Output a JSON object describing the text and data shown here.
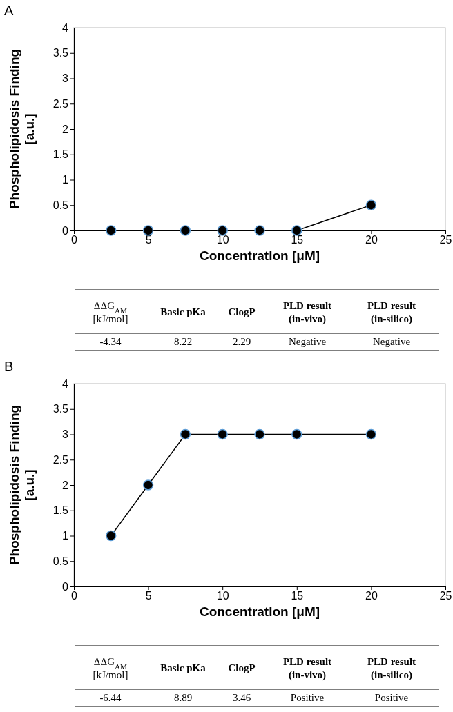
{
  "chart_data": [
    {
      "type": "line",
      "title": "A",
      "xlabel": "Concentration [μM]",
      "ylabel": "Phospholipidosis Finding [a.u.]",
      "x": [
        2.5,
        5,
        7.5,
        10,
        12.5,
        15,
        20
      ],
      "values": [
        0,
        0,
        0,
        0,
        0,
        0,
        0.5
      ],
      "color": "#000000",
      "marker": "circle",
      "xlim": [
        0,
        25
      ],
      "xticks": [
        0,
        5,
        10,
        15,
        20,
        25
      ],
      "ylim": [
        0,
        4
      ],
      "yticks": [
        0,
        0.5,
        1,
        1.5,
        2,
        2.5,
        3,
        3.5,
        4
      ],
      "annotations": [
        "ΔΔG$_{AM}$ [kJ/mol]",
        "Basic pKa",
        "ClogP",
        "PLD result (in-vivo)",
        "PLD result (in-silico)",
        "-4.34",
        "8.22",
        "2.29",
        "Negative",
        "Negative"
      ]
    },
    {
      "type": "line",
      "title": "B",
      "xlabel": "Concentration [μM]",
      "ylabel": "Phospholipidosis Finding [a.u.]",
      "x": [
        2.5,
        5,
        7.5,
        10,
        12.5,
        15,
        20
      ],
      "values": [
        1,
        2,
        3,
        3,
        3,
        3,
        3
      ],
      "color": "#000000",
      "marker": "circle",
      "xlim": [
        0,
        25
      ],
      "xticks": [
        0,
        5,
        10,
        15,
        20,
        25
      ],
      "ylim": [
        0,
        4
      ],
      "yticks": [
        0,
        0.5,
        1,
        1.5,
        2,
        2.5,
        3,
        3.5,
        4
      ],
      "annotations": [
        "ΔΔG$_{AM}$ [kJ/mol]",
        "Basic pKa",
        "ClogP",
        "PLD result (in-vivo)",
        "PLD result (in-silico)",
        "-6.44",
        "8.89",
        "3.46",
        "Positive",
        "Positive"
      ]
    }
  ]
}
